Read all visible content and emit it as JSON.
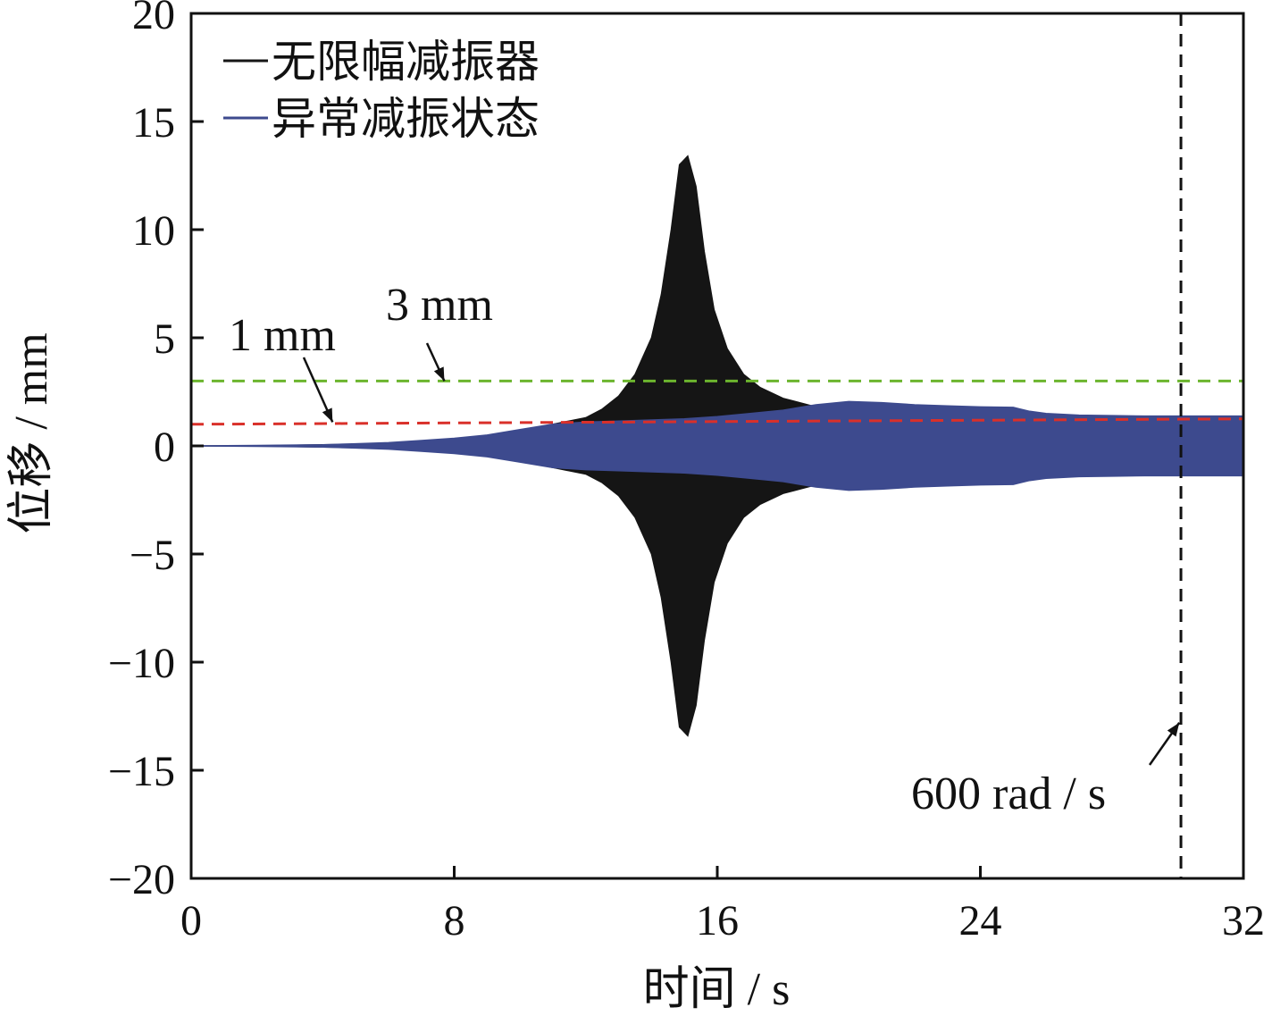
{
  "chart_data": {
    "type": "area",
    "xlabel": "时间 / s",
    "ylabel": "位移 / mm",
    "xlim": [
      0,
      32
    ],
    "ylim": [
      -20,
      20
    ],
    "xticks": [
      0,
      8,
      16,
      24,
      32
    ],
    "yticks": [
      20,
      15,
      10,
      5,
      0,
      -5,
      -10,
      -15,
      -20
    ],
    "ytick_labels": [
      "20",
      "15",
      "10",
      "5",
      "0",
      "−5",
      "−10",
      "−15",
      "−20"
    ],
    "legend_position": "top-left",
    "series": [
      {
        "name": "无限幅减振器",
        "color": "#151515",
        "style": "envelope",
        "x": [
          0,
          2,
          4,
          6,
          8,
          9,
          10,
          11,
          12,
          12.5,
          13,
          13.5,
          14,
          14.3,
          14.6,
          14.85,
          15.1,
          15.35,
          15.6,
          15.9,
          16.3,
          16.8,
          17.3,
          18,
          19
        ],
        "upper": [
          0,
          0,
          0.05,
          0.1,
          0.3,
          0.45,
          0.7,
          1.0,
          1.3,
          1.7,
          2.3,
          3.3,
          5.0,
          7.0,
          10.0,
          13.0,
          13.4,
          12.0,
          9.0,
          6.3,
          4.5,
          3.3,
          2.7,
          2.2,
          1.8
        ],
        "lower": [
          0,
          0,
          -0.05,
          -0.1,
          -0.3,
          -0.45,
          -0.7,
          -1.0,
          -1.3,
          -1.7,
          -2.3,
          -3.3,
          -5.0,
          -7.0,
          -10.0,
          -13.0,
          -13.4,
          -12.0,
          -9.0,
          -6.3,
          -4.5,
          -3.3,
          -2.7,
          -2.2,
          -1.8
        ]
      },
      {
        "name": "异常减振状态",
        "color": "#3d4a8e",
        "style": "envelope",
        "x": [
          0,
          2,
          4,
          5,
          6,
          7,
          8,
          9,
          10,
          11,
          12,
          13,
          14,
          15,
          16,
          17,
          18,
          19,
          20,
          21,
          22,
          23,
          24,
          25,
          25.5,
          26,
          27,
          28,
          29,
          30,
          31,
          32
        ],
        "upper": [
          0,
          0.02,
          0.05,
          0.1,
          0.15,
          0.25,
          0.35,
          0.5,
          0.75,
          1.0,
          1.1,
          1.15,
          1.2,
          1.25,
          1.35,
          1.5,
          1.65,
          1.9,
          2.05,
          2.0,
          1.9,
          1.85,
          1.8,
          1.78,
          1.6,
          1.5,
          1.42,
          1.4,
          1.38,
          1.38,
          1.38,
          1.38
        ],
        "lower": [
          0,
          -0.02,
          -0.05,
          -0.1,
          -0.15,
          -0.25,
          -0.35,
          -0.5,
          -0.75,
          -1.0,
          -1.1,
          -1.15,
          -1.2,
          -1.25,
          -1.35,
          -1.5,
          -1.65,
          -1.9,
          -2.05,
          -2.0,
          -1.9,
          -1.85,
          -1.8,
          -1.78,
          -1.6,
          -1.5,
          -1.42,
          -1.4,
          -1.38,
          -1.38,
          -1.38,
          -1.38
        ]
      }
    ],
    "reference_lines": [
      {
        "orientation": "horizontal",
        "y": 3,
        "color": "#6cb52e",
        "label": "3 mm"
      },
      {
        "orientation": "horizontal",
        "y": 1,
        "color": "#d9302a",
        "y_end": 1.25,
        "label": "1 mm"
      },
      {
        "orientation": "vertical",
        "x": 30.1,
        "color": "#111111",
        "label": "600 rad / s"
      }
    ],
    "annotations": [
      {
        "text": "3 mm",
        "point": [
          7.7,
          3
        ]
      },
      {
        "text": "1 mm",
        "point": [
          4.3,
          1.1
        ]
      },
      {
        "text": "600 rad / s",
        "point": [
          30.05,
          -12.8
        ]
      }
    ]
  }
}
